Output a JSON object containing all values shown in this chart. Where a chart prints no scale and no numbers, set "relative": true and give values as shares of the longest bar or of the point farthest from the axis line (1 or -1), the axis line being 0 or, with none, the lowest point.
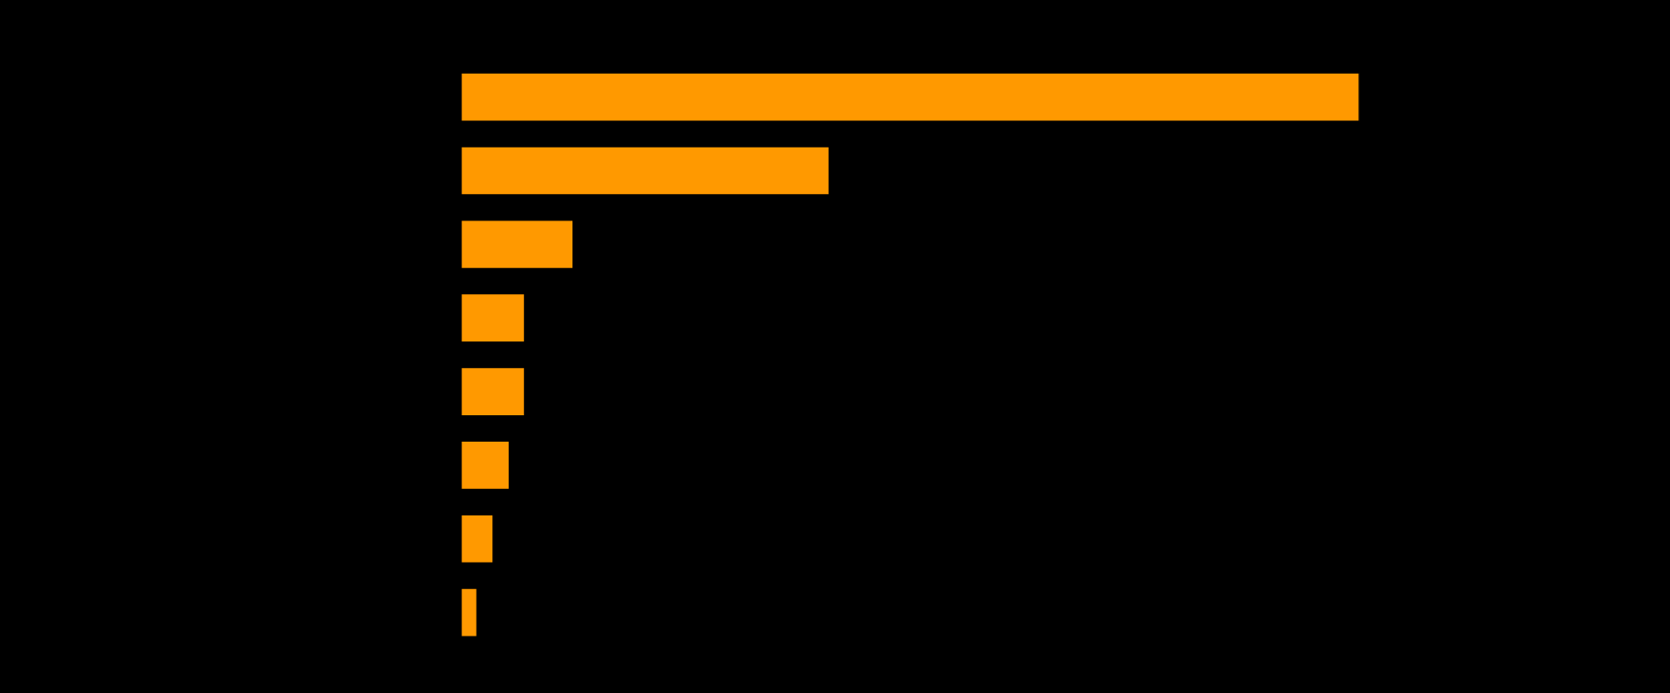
{
  "chart_data": {
    "type": "bar",
    "orientation": "horizontal",
    "relative": true,
    "categories": [
      null,
      null,
      null,
      null,
      null,
      null,
      null,
      null
    ],
    "values": [
      1,
      0.41,
      0.125,
      0.071,
      0.071,
      0.054,
      0.036,
      0.018
    ],
    "color": "#ff9900"
  }
}
